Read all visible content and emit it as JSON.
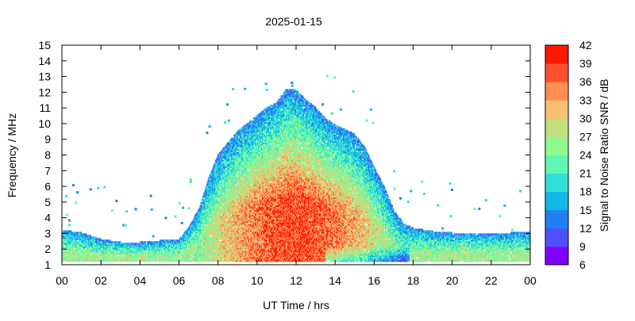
{
  "chart_data": {
    "type": "heatmap",
    "title": "2025-01-15",
    "xlabel": "UT Time / hrs",
    "ylabel": "Frequency / MHz",
    "xlim": [
      0,
      24
    ],
    "ylim": [
      1,
      15
    ],
    "x_ticks": [
      "00",
      "02",
      "04",
      "06",
      "08",
      "10",
      "12",
      "14",
      "16",
      "18",
      "20",
      "22",
      "00"
    ],
    "y_ticks": [
      1,
      2,
      3,
      4,
      5,
      6,
      7,
      8,
      9,
      10,
      11,
      12,
      13,
      14,
      15
    ],
    "grid": false,
    "colorbar": {
      "label": "Signal to Noise Ratio SNR / dB",
      "ticks": [
        42,
        39,
        36,
        33,
        30,
        27,
        24,
        21,
        18,
        15,
        12,
        9,
        6
      ],
      "range": [
        6,
        42
      ],
      "colors": [
        "#8000ff",
        "#5050ff",
        "#2080f0",
        "#10b8e8",
        "#30e0d8",
        "#60f8b0",
        "#90f890",
        "#c0e080",
        "#f8c070",
        "#ff9050",
        "#ff5030",
        "#ff1800"
      ]
    },
    "max_freq_profile": {
      "x": [
        0,
        1,
        2,
        3,
        4,
        5,
        6,
        6.5,
        7,
        7.5,
        8,
        9,
        10,
        10.5,
        11,
        11.5,
        12,
        12.5,
        13,
        13.5,
        14,
        15,
        15.5,
        16,
        16.5,
        17,
        17.5,
        18,
        19,
        20,
        21,
        22,
        23,
        24
      ],
      "y": [
        3.2,
        3.0,
        2.6,
        2.4,
        2.4,
        2.5,
        2.6,
        3.4,
        4.5,
        6.5,
        8.0,
        9.5,
        10.5,
        11.0,
        11.3,
        12.2,
        12.1,
        11.5,
        11.0,
        10.3,
        9.9,
        9.3,
        8.5,
        7.2,
        6.0,
        4.5,
        3.6,
        3.3,
        3.1,
        3.0,
        3.0,
        3.0,
        3.0,
        3.1
      ]
    },
    "min_freq": 1.2
  }
}
